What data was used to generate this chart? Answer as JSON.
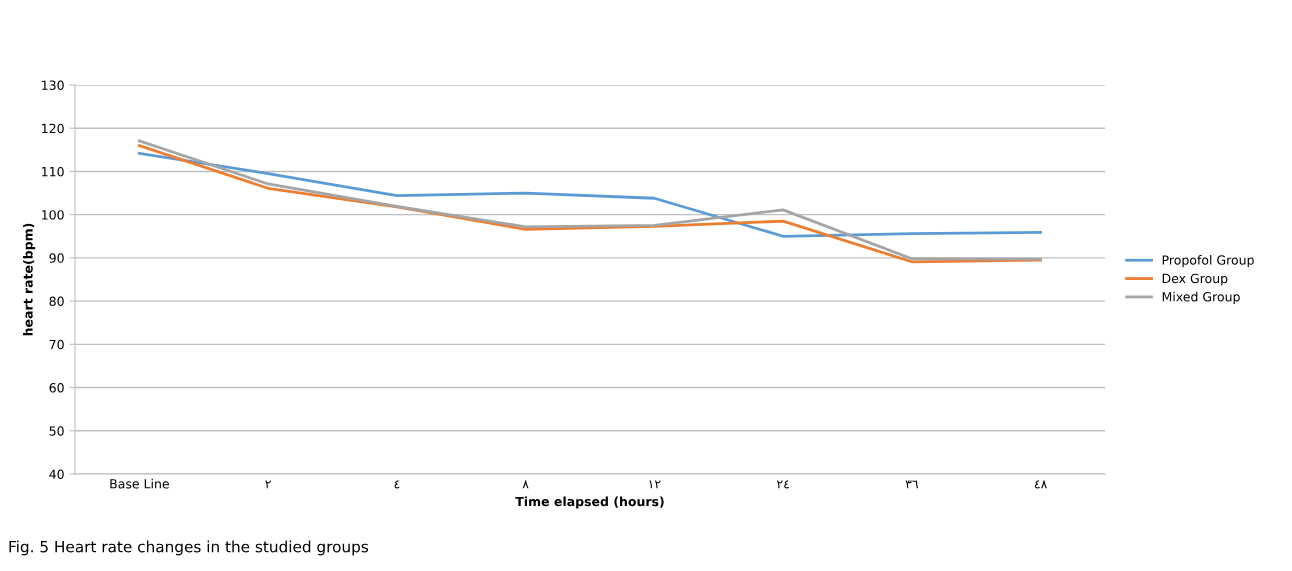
{
  "chart_data": {
    "type": "line",
    "xlabel": "Time elapsed (hours)",
    "ylabel": "heart rate(bpm)",
    "categories": [
      "Base Line",
      "٢",
      "٤",
      "٨",
      "١٢",
      "٢٤",
      "٣٦",
      "٤٨"
    ],
    "series": [
      {
        "name": "Propofol Group",
        "color": "#5b9bd5",
        "values": [
          114.2,
          109.5,
          104.4,
          105,
          103.8,
          95,
          95.6,
          95.9
        ]
      },
      {
        "name": "Dex Group",
        "color": "#ed7d31",
        "values": [
          116,
          106.1,
          101.8,
          96.6,
          97.3,
          98.5,
          89.1,
          89.5
        ]
      },
      {
        "name": "Mixed Group",
        "color": "#a5a5a5",
        "values": [
          117.1,
          107.1,
          101.9,
          97.2,
          97.5,
          101.1,
          89.8,
          89.7
        ]
      }
    ],
    "ylim": [
      40,
      130
    ],
    "yticks": [
      40,
      50,
      60,
      70,
      80,
      90,
      100,
      110,
      120,
      130
    ],
    "grid": "y",
    "legend": "right",
    "marker": "none",
    "line_style": "solid",
    "annotations": [
      "Fig. 5 Heart rate changes in the studied groups"
    ]
  }
}
